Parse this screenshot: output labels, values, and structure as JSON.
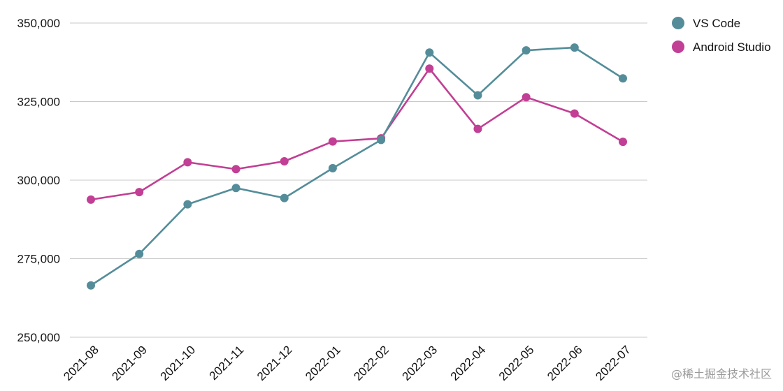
{
  "chart_data": {
    "type": "line",
    "categories": [
      "2021-08",
      "2021-09",
      "2021-10",
      "2021-11",
      "2021-12",
      "2022-01",
      "2022-02",
      "2022-03",
      "2022-04",
      "2022-05",
      "2022-06",
      "2022-07"
    ],
    "series": [
      {
        "name": "VS Code",
        "color": "#548d99",
        "values": [
          266500,
          276500,
          292300,
          297500,
          294300,
          303800,
          312800,
          340600,
          327000,
          341300,
          342200,
          332400
        ]
      },
      {
        "name": "Android Studio",
        "color": "#c13f94",
        "values": [
          293800,
          296200,
          305700,
          303500,
          306000,
          312300,
          313300,
          335500,
          316300,
          326400,
          321200,
          312200
        ]
      }
    ],
    "yticks": [
      "350,000",
      "325,000",
      "300,000",
      "275,000",
      "250,000"
    ],
    "ytick_values": [
      350000,
      325000,
      300000,
      275000,
      250000
    ],
    "ylim": [
      250000,
      350000
    ],
    "grid": true,
    "legend_position": "top-right",
    "title": "",
    "xlabel": "",
    "ylabel": ""
  },
  "watermark": "@稀土掘金技术社区"
}
